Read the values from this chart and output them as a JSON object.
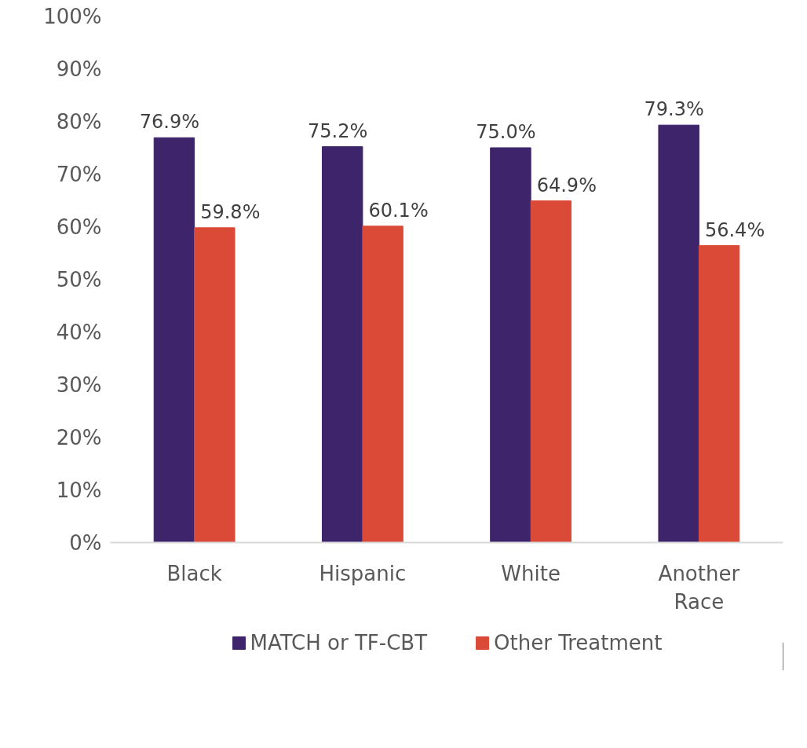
{
  "chart_data": {
    "type": "bar",
    "categories": [
      "Black",
      "Hispanic",
      "White",
      "Another Race"
    ],
    "series": [
      {
        "name": "MATCH or TF-CBT",
        "color": "#3d246b",
        "values": [
          76.9,
          75.2,
          75.0,
          79.3
        ],
        "value_labels": [
          "76.9%",
          "75.2%",
          "75.0%",
          "79.3%"
        ]
      },
      {
        "name": "Other Treatment",
        "color": "#db4a36",
        "values": [
          59.8,
          60.1,
          64.9,
          56.4
        ],
        "value_labels": [
          "59.8%",
          "60.1%",
          "64.9%",
          "56.4%"
        ]
      }
    ],
    "ylim": [
      0,
      100
    ],
    "yticks": [
      {
        "value": 0,
        "label": "0%"
      },
      {
        "value": 10,
        "label": "10%"
      },
      {
        "value": 20,
        "label": "20%"
      },
      {
        "value": 30,
        "label": "30%"
      },
      {
        "value": 40,
        "label": "40%"
      },
      {
        "value": 50,
        "label": "50%"
      },
      {
        "value": 60,
        "label": "60%"
      },
      {
        "value": 70,
        "label": "70%"
      },
      {
        "value": 80,
        "label": "80%"
      },
      {
        "value": 90,
        "label": "90%"
      },
      {
        "value": 100,
        "label": "100%"
      }
    ],
    "grid": false,
    "legend": "bottom"
  }
}
